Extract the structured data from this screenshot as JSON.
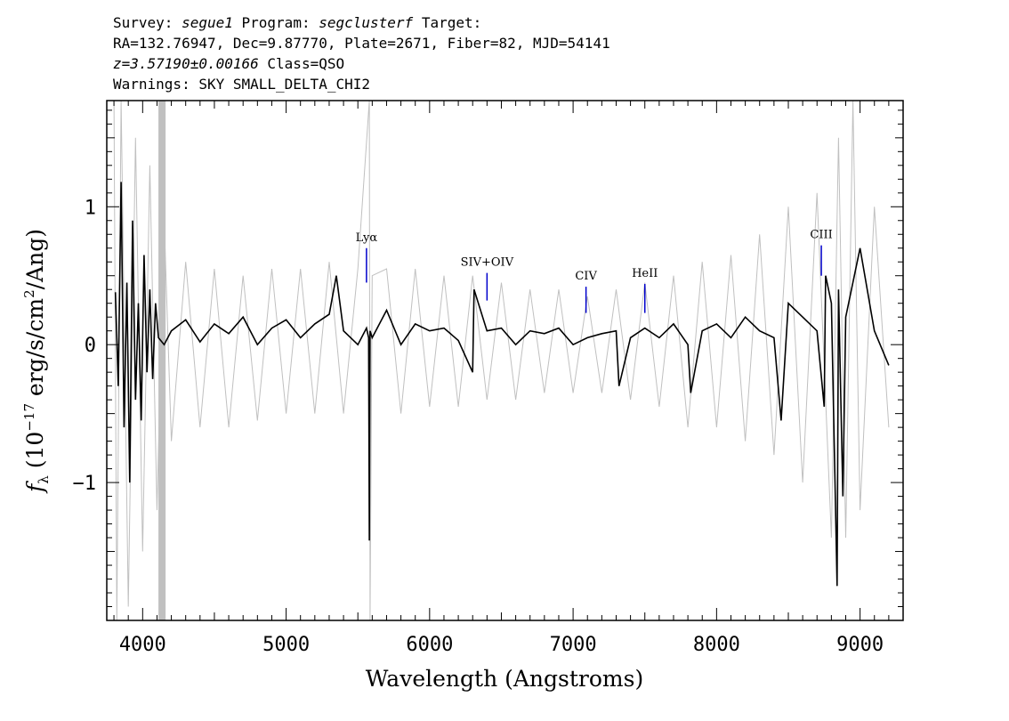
{
  "header": {
    "survey_label": "Survey:",
    "survey_value": "segue1",
    "program_label": "Program:",
    "program_value": "segclusterf",
    "target_label": "Target:",
    "coords": "RA=132.76947, Dec=9.87770, Plate=2671, Fiber=82, MJD=54141",
    "redshift": "z=3.57190±0.00166",
    "class_text": "Class=QSO",
    "warnings": "Warnings: SKY SMALL_DELTA_CHI2"
  },
  "chart_data": {
    "type": "line",
    "title": "",
    "xlabel": "Wavelength (Angstroms)",
    "ylabel": "f_λ (10^-17 erg/s/cm^2/Ang)",
    "xlim": [
      3750,
      9300
    ],
    "ylim": [
      -2.0,
      1.77
    ],
    "x_ticks": [
      4000,
      5000,
      6000,
      7000,
      8000,
      9000
    ],
    "y_ticks": [
      -1,
      0,
      1
    ],
    "grid": false,
    "colors": {
      "flux": "#000000",
      "error": "#c0c0c0",
      "lines": "#0000cc"
    },
    "series": [
      {
        "role": "flux",
        "points": [
          [
            3810,
            0.38
          ],
          [
            3830,
            -0.3
          ],
          [
            3850,
            1.18
          ],
          [
            3870,
            -0.6
          ],
          [
            3890,
            0.45
          ],
          [
            3910,
            -1.0
          ],
          [
            3930,
            0.9
          ],
          [
            3950,
            -0.4
          ],
          [
            3970,
            0.3
          ],
          [
            3990,
            -0.55
          ],
          [
            4010,
            0.65
          ],
          [
            4030,
            -0.2
          ],
          [
            4050,
            0.4
          ],
          [
            4070,
            -0.25
          ],
          [
            4090,
            0.3
          ],
          [
            4110,
            0.05
          ],
          [
            4150,
            0.0
          ],
          [
            4200,
            0.1
          ],
          [
            4300,
            0.18
          ],
          [
            4400,
            0.02
          ],
          [
            4500,
            0.15
          ],
          [
            4600,
            0.08
          ],
          [
            4700,
            0.2
          ],
          [
            4800,
            0.0
          ],
          [
            4900,
            0.12
          ],
          [
            5000,
            0.18
          ],
          [
            5100,
            0.05
          ],
          [
            5200,
            0.15
          ],
          [
            5300,
            0.22
          ],
          [
            5350,
            0.5
          ],
          [
            5400,
            0.1
          ],
          [
            5500,
            0.0
          ],
          [
            5560,
            0.12
          ],
          [
            5575,
            0.05
          ],
          [
            5580,
            -1.42
          ],
          [
            5585,
            0.1
          ],
          [
            5600,
            0.05
          ],
          [
            5700,
            0.25
          ],
          [
            5800,
            0.0
          ],
          [
            5900,
            0.15
          ],
          [
            6000,
            0.1
          ],
          [
            6100,
            0.12
          ],
          [
            6200,
            0.03
          ],
          [
            6300,
            -0.2
          ],
          [
            6310,
            0.4
          ],
          [
            6400,
            0.1
          ],
          [
            6500,
            0.12
          ],
          [
            6600,
            0.0
          ],
          [
            6700,
            0.1
          ],
          [
            6800,
            0.08
          ],
          [
            6900,
            0.12
          ],
          [
            7000,
            0.0
          ],
          [
            7100,
            0.05
          ],
          [
            7200,
            0.08
          ],
          [
            7300,
            0.1
          ],
          [
            7320,
            -0.3
          ],
          [
            7400,
            0.05
          ],
          [
            7500,
            0.12
          ],
          [
            7600,
            0.05
          ],
          [
            7700,
            0.15
          ],
          [
            7800,
            0.0
          ],
          [
            7820,
            -0.35
          ],
          [
            7900,
            0.1
          ],
          [
            8000,
            0.15
          ],
          [
            8100,
            0.05
          ],
          [
            8200,
            0.2
          ],
          [
            8300,
            0.1
          ],
          [
            8400,
            0.05
          ],
          [
            8450,
            -0.55
          ],
          [
            8500,
            0.3
          ],
          [
            8600,
            0.2
          ],
          [
            8700,
            0.1
          ],
          [
            8750,
            -0.45
          ],
          [
            8760,
            0.5
          ],
          [
            8800,
            0.3
          ],
          [
            8840,
            -1.75
          ],
          [
            8850,
            0.4
          ],
          [
            8880,
            -1.1
          ],
          [
            8900,
            0.2
          ],
          [
            9000,
            0.7
          ],
          [
            9100,
            0.1
          ],
          [
            9200,
            -0.15
          ]
        ]
      },
      {
        "role": "error",
        "points": [
          [
            3800,
            1.77
          ],
          [
            3820,
            -2.0
          ],
          [
            3850,
            1.77
          ],
          [
            3900,
            -1.9
          ],
          [
            3950,
            1.5
          ],
          [
            4000,
            -1.5
          ],
          [
            4050,
            1.3
          ],
          [
            4100,
            -1.2
          ],
          [
            4150,
            0.9
          ],
          [
            4200,
            -0.7
          ],
          [
            4300,
            0.6
          ],
          [
            4400,
            -0.6
          ],
          [
            4500,
            0.55
          ],
          [
            4600,
            -0.6
          ],
          [
            4700,
            0.5
          ],
          [
            4800,
            -0.55
          ],
          [
            4900,
            0.55
          ],
          [
            5000,
            -0.5
          ],
          [
            5100,
            0.55
          ],
          [
            5200,
            -0.5
          ],
          [
            5300,
            0.6
          ],
          [
            5400,
            -0.5
          ],
          [
            5500,
            0.55
          ],
          [
            5580,
            1.77
          ],
          [
            5585,
            -2.0
          ],
          [
            5600,
            0.5
          ],
          [
            5700,
            0.55
          ],
          [
            5800,
            -0.5
          ],
          [
            5900,
            0.55
          ],
          [
            6000,
            -0.45
          ],
          [
            6100,
            0.5
          ],
          [
            6200,
            -0.45
          ],
          [
            6300,
            0.5
          ],
          [
            6400,
            -0.4
          ],
          [
            6500,
            0.45
          ],
          [
            6600,
            -0.4
          ],
          [
            6700,
            0.4
          ],
          [
            6800,
            -0.35
          ],
          [
            6900,
            0.4
          ],
          [
            7000,
            -0.35
          ],
          [
            7100,
            0.35
          ],
          [
            7200,
            -0.35
          ],
          [
            7300,
            0.4
          ],
          [
            7400,
            -0.4
          ],
          [
            7500,
            0.45
          ],
          [
            7600,
            -0.45
          ],
          [
            7700,
            0.5
          ],
          [
            7800,
            -0.6
          ],
          [
            7900,
            0.6
          ],
          [
            8000,
            -0.6
          ],
          [
            8100,
            0.65
          ],
          [
            8200,
            -0.7
          ],
          [
            8300,
            0.8
          ],
          [
            8400,
            -0.8
          ],
          [
            8500,
            1.0
          ],
          [
            8600,
            -1.0
          ],
          [
            8700,
            1.1
          ],
          [
            8800,
            -1.4
          ],
          [
            8850,
            1.5
          ],
          [
            8900,
            -1.4
          ],
          [
            8950,
            1.77
          ],
          [
            9000,
            -1.2
          ],
          [
            9100,
            1.0
          ],
          [
            9200,
            -0.6
          ]
        ]
      }
    ],
    "masked_region": [
      4110,
      4160
    ],
    "annotations": [
      {
        "label": "Lyα",
        "x": 5560,
        "y0": 0.45,
        "y1": 0.7
      },
      {
        "label": "SIV+OIV",
        "x": 6400,
        "y0": 0.32,
        "y1": 0.52
      },
      {
        "label": "CIV",
        "x": 7090,
        "y0": 0.23,
        "y1": 0.42
      },
      {
        "label": "HeII",
        "x": 7500,
        "y0": 0.23,
        "y1": 0.44
      },
      {
        "label": "CIII",
        "x": 8730,
        "y0": 0.5,
        "y1": 0.72
      }
    ]
  }
}
